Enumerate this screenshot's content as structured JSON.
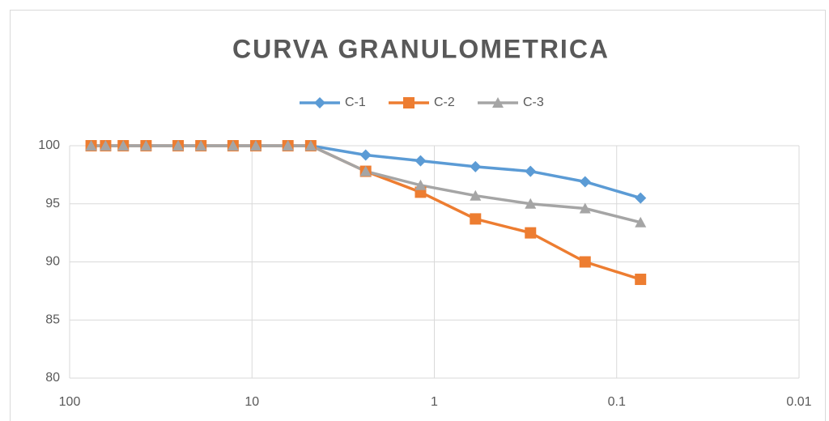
{
  "chart_data": {
    "type": "line",
    "title": "CURVA GRANULOMETRICA",
    "x": [
      76.2,
      63.5,
      50.8,
      38.1,
      25.4,
      19.05,
      12.7,
      9.525,
      6.35,
      4.76,
      2.38,
      1.19,
      0.595,
      0.297,
      0.149,
      0.074
    ],
    "series": [
      {
        "name": "C-1",
        "color": "#5b9bd5",
        "marker": "diamond",
        "values": [
          100,
          100,
          100,
          100,
          100,
          100,
          100,
          100,
          100,
          100,
          99.2,
          98.7,
          98.2,
          97.8,
          96.9,
          95.5
        ]
      },
      {
        "name": "C-2",
        "color": "#ed7d31",
        "marker": "square",
        "values": [
          100,
          100,
          100,
          100,
          100,
          100,
          100,
          100,
          100,
          100,
          97.8,
          96.0,
          93.7,
          92.5,
          90.0,
          88.5
        ]
      },
      {
        "name": "C-3",
        "color": "#a5a5a5",
        "marker": "triangle",
        "values": [
          100,
          100,
          100,
          100,
          100,
          100,
          100,
          100,
          100,
          100,
          97.8,
          96.6,
          95.7,
          95.0,
          94.6,
          93.4
        ]
      }
    ],
    "xlim": [
      100,
      0.01
    ],
    "xticks": [
      100,
      10,
      1,
      0.1,
      0.01
    ],
    "x_log": true,
    "ylim": [
      80,
      100
    ],
    "yticks": [
      80,
      85,
      90,
      95,
      100
    ],
    "grid": true,
    "legend": "top"
  }
}
